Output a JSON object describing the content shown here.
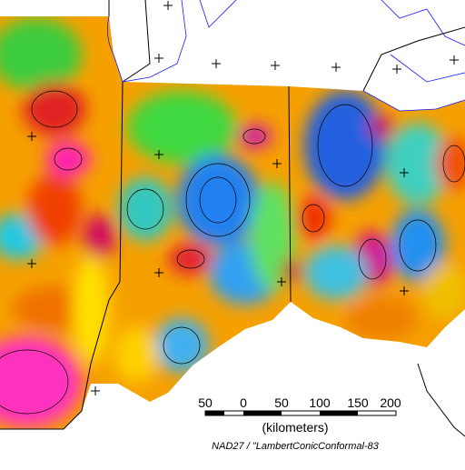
{
  "scale_bar": {
    "labels": [
      "50",
      "0",
      "50",
      "100",
      "150",
      "200"
    ],
    "unit": "(kilometers)"
  },
  "projection": "NAD27 / \"LambertConicConformal-83"
}
